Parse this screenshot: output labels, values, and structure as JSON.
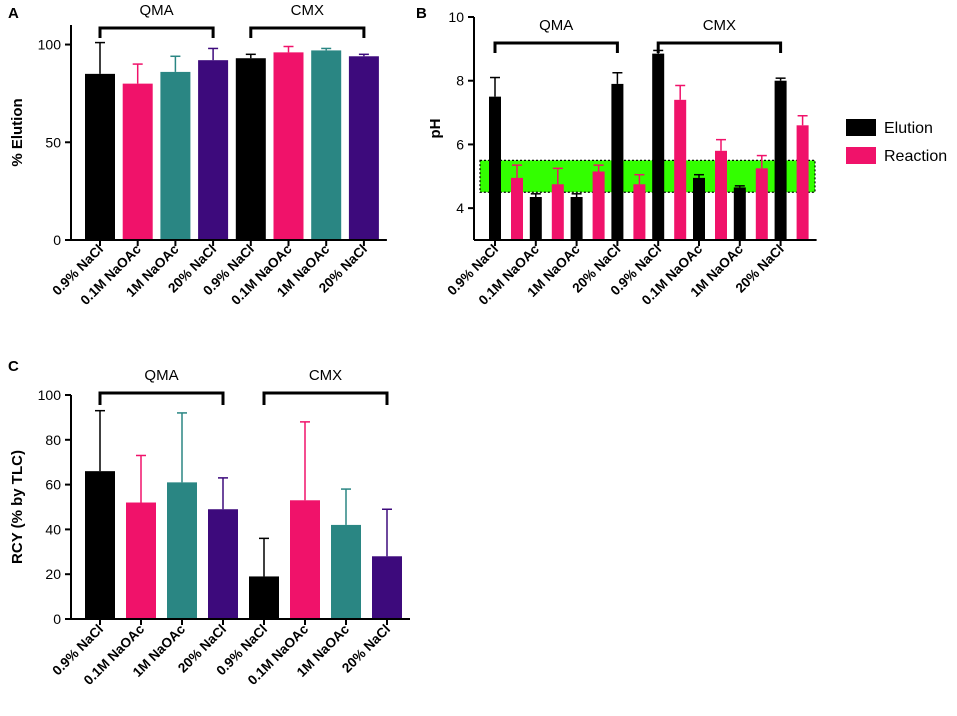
{
  "colors": {
    "black": "#000000",
    "pink": "#f0126a",
    "teal": "#2a8683",
    "purple": "#3d0a7c",
    "band": "#33ff00"
  },
  "chart_data": [
    {
      "id": "A",
      "panel_label": "A",
      "type": "bar",
      "ylabel": "% Elution",
      "ylim": [
        0,
        110
      ],
      "yticks": [
        0,
        50,
        100
      ],
      "categories": [
        "0.9% NaCl",
        "0.1M NaOAc",
        "1M NaOAc",
        "20% NaCl",
        "0.9% NaCl",
        "0.1M NaOAc",
        "1M NaOAc",
        "20% NaCl"
      ],
      "values": [
        85,
        80,
        86,
        92,
        93,
        96,
        97,
        94
      ],
      "errors": [
        16,
        10,
        8,
        6,
        2,
        3,
        1,
        1
      ],
      "bar_colors": [
        "black",
        "pink",
        "teal",
        "purple",
        "black",
        "pink",
        "teal",
        "purple"
      ],
      "groups": [
        {
          "label": "QMA",
          "from": 0,
          "to": 3
        },
        {
          "label": "CMX",
          "from": 4,
          "to": 7
        }
      ]
    },
    {
      "id": "B",
      "panel_label": "B",
      "type": "bar",
      "ylabel": "pH",
      "ylim": [
        3,
        10
      ],
      "yticks": [
        4,
        6,
        8,
        10
      ],
      "categories": [
        "0.9% NaCl",
        "0.1M NaOAc",
        "1M NaOAc",
        "20% NaCl",
        "0.9% NaCl",
        "0.1M NaOAc",
        "1M NaOAc",
        "20% NaCl"
      ],
      "series": [
        {
          "name": "Elution",
          "color": "black",
          "values": [
            7.5,
            4.35,
            4.35,
            7.9,
            8.85,
            4.95,
            4.65,
            8.0
          ],
          "errors": [
            0.6,
            0.1,
            0.1,
            0.35,
            0.1,
            0.1,
            0.05,
            0.08
          ]
        },
        {
          "name": "Reaction",
          "color": "pink",
          "values": [
            4.95,
            4.75,
            5.15,
            4.75,
            7.4,
            5.8,
            5.25,
            6.6
          ],
          "errors": [
            0.4,
            0.5,
            0.2,
            0.3,
            0.45,
            0.35,
            0.4,
            0.3
          ]
        }
      ],
      "band": [
        4.5,
        5.5
      ],
      "groups": [
        {
          "label": "QMA",
          "from": 0,
          "to": 3
        },
        {
          "label": "CMX",
          "from": 4,
          "to": 7
        }
      ]
    },
    {
      "id": "C",
      "panel_label": "C",
      "type": "bar",
      "ylabel": "RCY (% by TLC)",
      "ylim": [
        0,
        100
      ],
      "yticks": [
        0,
        20,
        40,
        60,
        80,
        100
      ],
      "categories": [
        "0.9% NaCl",
        "0.1M NaOAc",
        "1M NaOAc",
        "20% NaCl",
        "0.9% NaCl",
        "0.1M NaOAc",
        "1M NaOAc",
        "20% NaCl"
      ],
      "values": [
        66,
        52,
        61,
        49,
        19,
        53,
        42,
        28
      ],
      "errors": [
        27,
        21,
        31,
        14,
        17,
        35,
        16,
        21
      ],
      "bar_colors": [
        "black",
        "pink",
        "teal",
        "purple",
        "black",
        "pink",
        "teal",
        "purple"
      ],
      "groups": [
        {
          "label": "QMA",
          "from": 0,
          "to": 3
        },
        {
          "label": "CMX",
          "from": 4,
          "to": 7
        }
      ]
    }
  ]
}
